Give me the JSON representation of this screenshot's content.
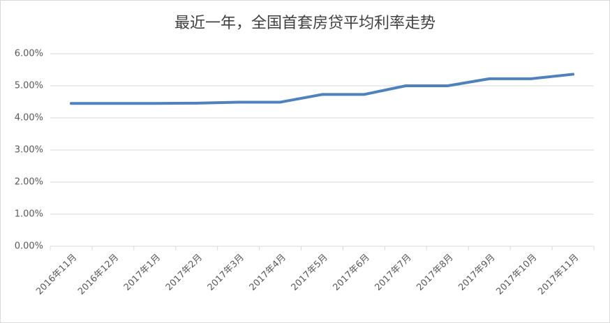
{
  "chart_data": {
    "type": "line",
    "title": "最近一年，全国首套房贷平均利率走势",
    "categories": [
      "2016年11月",
      "2016年12月",
      "2017年1月",
      "2017年2月",
      "2017年3月",
      "2017年4月",
      "2017年5月",
      "2017年6月",
      "2017年7月",
      "2017年8月",
      "2017年9月",
      "2017年10月",
      "2017年11月"
    ],
    "series": [
      {
        "color": "#4f81bd",
        "values": [
          4.45,
          4.45,
          4.45,
          4.46,
          4.49,
          4.49,
          4.73,
          4.73,
          5.0,
          5.0,
          5.22,
          5.22,
          5.36
        ]
      }
    ],
    "ylim": [
      0,
      6
    ],
    "yticks": [
      {
        "value": 0,
        "label": "0.00%"
      },
      {
        "value": 1,
        "label": "1.00%"
      },
      {
        "value": 2,
        "label": "2.00%"
      },
      {
        "value": 3,
        "label": "3.00%"
      },
      {
        "value": 4,
        "label": "4.00%"
      },
      {
        "value": 5,
        "label": "5.00%"
      },
      {
        "value": 6,
        "label": "6.00%"
      }
    ],
    "grid": true
  }
}
